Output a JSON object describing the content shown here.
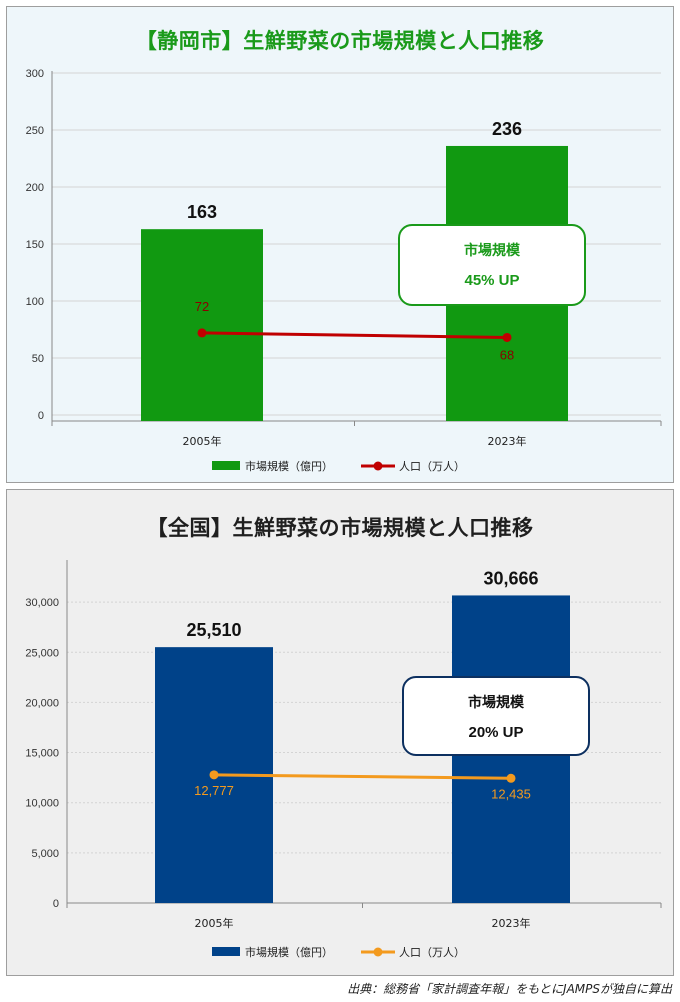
{
  "chart_data": [
    {
      "type": "bar",
      "title": "【静岡市】生鮮野菜の市場規模と人口推移",
      "categories": [
        "2005年",
        "2023年"
      ],
      "series": [
        {
          "name": "市場規模（億円）",
          "type": "bar",
          "values": [
            163,
            236
          ],
          "color": "#119911"
        },
        {
          "name": "人口（万人）",
          "type": "line",
          "values": [
            72,
            68
          ],
          "color": "#c00000"
        }
      ],
      "bar_labels": [
        "163",
        "236"
      ],
      "line_labels": [
        "72",
        "68"
      ],
      "y_ticks": [
        "0",
        "50",
        "100",
        "150",
        "200",
        "250",
        "300"
      ],
      "ylim": [
        0,
        300
      ],
      "callout": {
        "line1": "市場規模",
        "line2": "45% UP",
        "color": "#1a9a1a"
      },
      "legend_position": "bottom"
    },
    {
      "type": "bar",
      "title": "【全国】生鮮野菜の市場規模と人口推移",
      "categories": [
        "2005年",
        "2023年"
      ],
      "series": [
        {
          "name": "市場規模（億円）",
          "type": "bar",
          "values": [
            25510,
            30666
          ],
          "color": "#004289"
        },
        {
          "name": "人口（万人）",
          "type": "line",
          "values": [
            12777,
            12435
          ],
          "color": "#f39a1e"
        }
      ],
      "bar_labels": [
        "25,510",
        "30,666"
      ],
      "line_labels": [
        "12,777",
        "12,435"
      ],
      "y_ticks": [
        "0",
        "5,000",
        "10,000",
        "15,000",
        "20,000",
        "25,000",
        "30,000"
      ],
      "ylim": [
        0,
        34000
      ],
      "callout": {
        "line1": "市場規模",
        "line2": "20% UP",
        "color": "#0d3060"
      },
      "legend_position": "bottom"
    }
  ],
  "source_note": "出典：総務省「家計調査年報」をもとにJAMPSが独自に算出"
}
